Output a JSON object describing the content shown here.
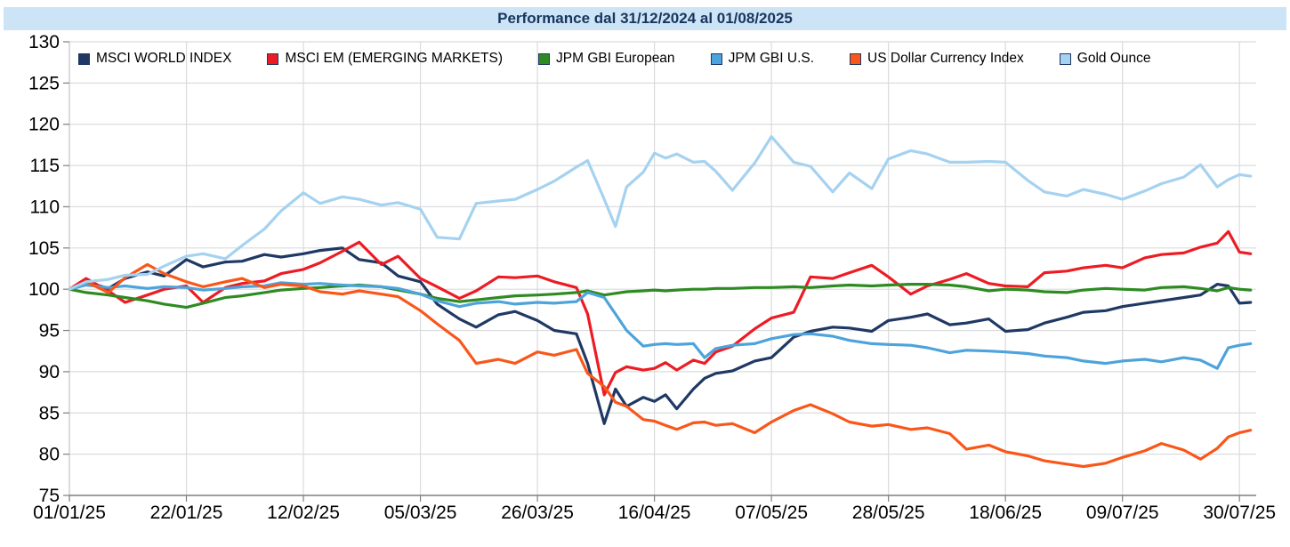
{
  "title": "Performance dal 31/12/2024 al 01/08/2025",
  "colors": {
    "title_bg": "#CDE4F7",
    "title_text": "#17365D",
    "grid": "#DADBDD",
    "axis_left": "#C6C6C6",
    "axis_bottom": "#7F7F7F",
    "tick": "#7F7F7F",
    "tick_text": "#000000"
  },
  "chart_data": {
    "type": "line",
    "title": "Performance dal 31/12/2024 al 01/08/2025",
    "xlabel": "",
    "ylabel": "",
    "grid": true,
    "legend_position": "top-inside",
    "y_axis": {
      "min": 75,
      "max": 130,
      "step": 5,
      "tick_labels": [
        "75",
        "80",
        "85",
        "90",
        "95",
        "100",
        "105",
        "110",
        "115",
        "120",
        "125",
        "130"
      ]
    },
    "x_axis": {
      "unit": "days from 01/01/2025",
      "domain_days": 213,
      "tick_days": [
        0,
        21,
        42,
        63,
        84,
        105,
        126,
        147,
        168,
        189,
        210
      ],
      "tick_labels": [
        "01/01/25",
        "22/01/25",
        "12/02/25",
        "05/03/25",
        "26/03/25",
        "16/04/25",
        "07/05/25",
        "28/05/25",
        "18/06/25",
        "09/07/25",
        "30/07/25"
      ]
    },
    "x_days": [
      0,
      3,
      7,
      10,
      14,
      17,
      21,
      24,
      28,
      31,
      35,
      38,
      42,
      45,
      49,
      52,
      56,
      59,
      63,
      66,
      70,
      73,
      77,
      80,
      84,
      87,
      91,
      93,
      96,
      98,
      100,
      103,
      105,
      107,
      109,
      112,
      114,
      116,
      119,
      123,
      126,
      130,
      133,
      137,
      140,
      144,
      147,
      151,
      154,
      158,
      161,
      165,
      168,
      172,
      175,
      179,
      182,
      186,
      189,
      193,
      196,
      200,
      203,
      206,
      208,
      210,
      212
    ],
    "series": [
      {
        "name": "MSCI WORLD INDEX",
        "color": "#1F3864",
        "values": [
          100.0,
          100.9,
          100.1,
          101.3,
          102.1,
          101.6,
          103.6,
          102.7,
          103.3,
          103.4,
          104.2,
          103.9,
          104.3,
          104.7,
          105.0,
          103.6,
          103.2,
          101.6,
          100.9,
          98.2,
          96.4,
          95.4,
          96.9,
          97.3,
          96.2,
          95.0,
          94.6,
          91.0,
          83.7,
          87.9,
          85.8,
          86.9,
          86.4,
          87.2,
          85.5,
          87.9,
          89.2,
          89.8,
          90.1,
          91.3,
          91.7,
          94.2,
          94.9,
          95.4,
          95.3,
          94.9,
          96.2,
          96.6,
          97.0,
          95.7,
          95.9,
          96.4,
          94.9,
          95.1,
          95.9,
          96.6,
          97.2,
          97.4,
          97.9,
          98.3,
          98.6,
          99.0,
          99.3,
          100.6,
          100.4,
          98.3,
          98.4
        ]
      },
      {
        "name": "MSCI EM (EMERGING MARKETS)",
        "color": "#ED1C24",
        "values": [
          100.0,
          101.3,
          99.8,
          98.4,
          99.3,
          100.0,
          100.4,
          98.4,
          100.2,
          100.7,
          101.0,
          101.9,
          102.4,
          103.2,
          104.6,
          105.7,
          103.0,
          104.0,
          101.3,
          100.3,
          98.9,
          99.8,
          101.5,
          101.4,
          101.6,
          100.9,
          100.2,
          97.0,
          87.2,
          89.9,
          90.6,
          90.2,
          90.4,
          91.1,
          90.2,
          91.4,
          91.0,
          92.4,
          93.1,
          95.2,
          96.5,
          97.2,
          101.5,
          101.3,
          102.0,
          102.9,
          101.5,
          99.4,
          100.4,
          101.2,
          101.9,
          100.7,
          100.4,
          100.3,
          102.0,
          102.2,
          102.6,
          102.9,
          102.6,
          103.8,
          104.2,
          104.4,
          105.1,
          105.6,
          107.0,
          104.5,
          104.3
        ]
      },
      {
        "name": "JPM GBI European",
        "color": "#2E8B22",
        "values": [
          100.0,
          99.6,
          99.3,
          99.0,
          98.6,
          98.2,
          97.8,
          98.3,
          99.0,
          99.2,
          99.6,
          99.9,
          100.1,
          100.2,
          100.4,
          100.5,
          100.3,
          99.9,
          99.4,
          98.9,
          98.5,
          98.7,
          99.0,
          99.2,
          99.3,
          99.4,
          99.6,
          99.8,
          99.3,
          99.5,
          99.7,
          99.8,
          99.9,
          99.8,
          99.9,
          100.0,
          100.0,
          100.1,
          100.1,
          100.2,
          100.2,
          100.3,
          100.2,
          100.4,
          100.5,
          100.4,
          100.5,
          100.6,
          100.6,
          100.5,
          100.3,
          99.8,
          100.0,
          99.9,
          99.7,
          99.6,
          99.9,
          100.1,
          100.0,
          99.9,
          100.2,
          100.3,
          100.1,
          99.8,
          100.2,
          100.0,
          99.9
        ]
      },
      {
        "name": "JPM GBI U.S.",
        "color": "#4DA3DB",
        "values": [
          100.0,
          100.5,
          100.2,
          100.4,
          100.1,
          100.3,
          100.2,
          99.9,
          100.1,
          100.3,
          100.4,
          100.8,
          100.6,
          100.7,
          100.5,
          100.4,
          100.3,
          100.1,
          99.4,
          98.6,
          97.9,
          98.3,
          98.5,
          98.2,
          98.4,
          98.3,
          98.5,
          99.6,
          99.0,
          97.0,
          95.0,
          93.1,
          93.3,
          93.4,
          93.3,
          93.4,
          91.7,
          92.8,
          93.2,
          93.4,
          94.0,
          94.5,
          94.6,
          94.3,
          93.8,
          93.4,
          93.3,
          93.2,
          92.9,
          92.3,
          92.6,
          92.5,
          92.4,
          92.2,
          91.9,
          91.7,
          91.3,
          91.0,
          91.3,
          91.5,
          91.2,
          91.7,
          91.4,
          90.4,
          92.9,
          93.2,
          93.4
        ]
      },
      {
        "name": "US Dollar Currency Index",
        "color": "#F9571A",
        "values": [
          100.0,
          100.9,
          99.6,
          101.4,
          103.0,
          101.9,
          100.9,
          100.3,
          100.9,
          101.3,
          100.2,
          100.6,
          100.4,
          99.7,
          99.4,
          99.8,
          99.4,
          99.1,
          97.4,
          95.8,
          93.8,
          91.0,
          91.5,
          91.0,
          92.4,
          92.0,
          92.7,
          89.8,
          88.2,
          86.3,
          85.8,
          84.2,
          84.0,
          83.5,
          83.0,
          83.8,
          83.9,
          83.5,
          83.7,
          82.6,
          83.9,
          85.3,
          86.0,
          84.9,
          83.9,
          83.4,
          83.6,
          83.0,
          83.2,
          82.5,
          80.6,
          81.1,
          80.3,
          79.8,
          79.2,
          78.8,
          78.5,
          78.9,
          79.6,
          80.4,
          81.3,
          80.5,
          79.4,
          80.7,
          82.1,
          82.6,
          82.9
        ]
      },
      {
        "name": "Gold Ounce",
        "color": "#A5D2F0",
        "values": [
          100.0,
          100.9,
          101.2,
          101.7,
          101.8,
          102.8,
          104.0,
          104.3,
          103.7,
          105.3,
          107.3,
          109.5,
          111.7,
          110.4,
          111.2,
          110.9,
          110.2,
          110.5,
          109.7,
          106.3,
          106.1,
          110.4,
          110.7,
          110.9,
          112.1,
          113.1,
          114.8,
          115.6,
          110.9,
          107.6,
          112.4,
          114.2,
          116.5,
          115.9,
          116.4,
          115.4,
          115.5,
          114.3,
          112.0,
          115.3,
          118.5,
          115.4,
          114.9,
          111.8,
          114.1,
          112.2,
          115.8,
          116.8,
          116.4,
          115.4,
          115.4,
          115.5,
          115.4,
          113.2,
          111.8,
          111.3,
          112.1,
          111.5,
          110.9,
          111.9,
          112.8,
          113.6,
          115.1,
          112.4,
          113.3,
          113.9,
          113.7
        ]
      }
    ]
  }
}
